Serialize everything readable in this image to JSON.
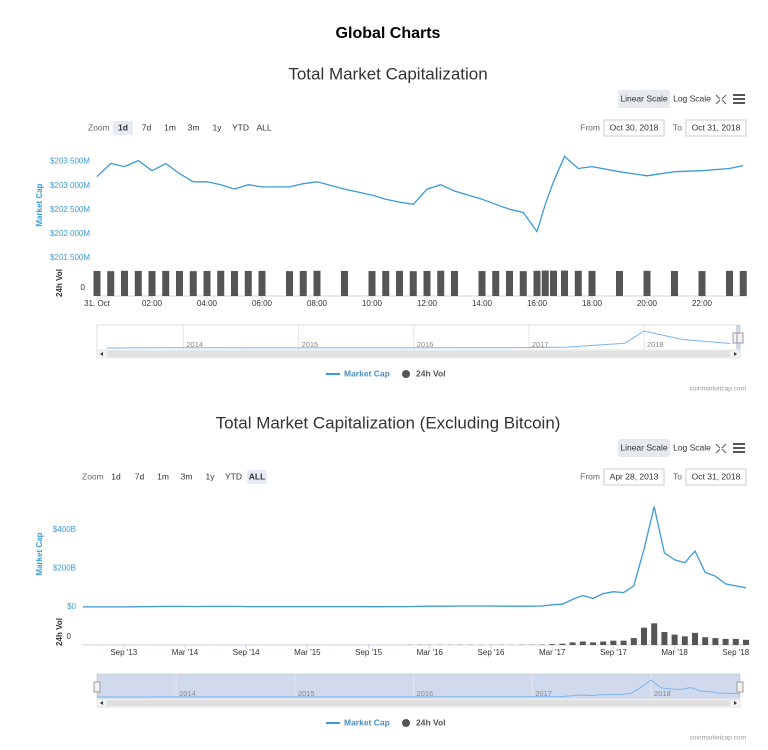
{
  "title": "Global Charts",
  "chart_data": [
    {
      "type": "line",
      "title": "Total Market Capitalization",
      "scale_buttons": [
        "Linear Scale",
        "Log Scale"
      ],
      "selected_scale": "Linear Scale",
      "zoom_label": "Zoom",
      "zoom_buttons": [
        "1d",
        "7d",
        "1m",
        "3m",
        "1y",
        "YTD",
        "ALL"
      ],
      "selected_zoom": "1d",
      "from_label": "From",
      "from_date": "Oct 30, 2018",
      "to_label": "To",
      "to_date": "Oct 31, 2018",
      "y_label": "Market Cap",
      "y2_label": "24h Vol",
      "x": [
        0,
        0.5,
        1,
        1.5,
        2,
        2.5,
        3,
        3.5,
        4,
        4.5,
        5,
        5.5,
        6,
        7,
        7.5,
        8,
        9,
        10,
        10.5,
        11,
        11.5,
        12,
        12.5,
        13,
        14,
        14.5,
        15,
        15.5,
        16,
        16.3,
        16.6,
        17,
        17.5,
        18,
        19,
        20,
        21,
        22,
        23,
        23.5
      ],
      "xlim": [
        0,
        23.6
      ],
      "xticks": [
        {
          "value": 0,
          "label": "31. Oct"
        },
        {
          "value": 2,
          "label": "02:00"
        },
        {
          "value": 4,
          "label": "04:00"
        },
        {
          "value": 6,
          "label": "06:00"
        },
        {
          "value": 8,
          "label": "08:00"
        },
        {
          "value": 10,
          "label": "10:00"
        },
        {
          "value": 12,
          "label": "12:00"
        },
        {
          "value": 14,
          "label": "14:00"
        },
        {
          "value": 16,
          "label": "16:00"
        },
        {
          "value": 18,
          "label": "18:00"
        },
        {
          "value": 20,
          "label": "20:00"
        },
        {
          "value": 22,
          "label": "22:00"
        }
      ],
      "ylim": [
        201420,
        203780
      ],
      "yticks": [
        {
          "value": 201500,
          "label": "$201 500M"
        },
        {
          "value": 202000,
          "label": "$202 000M"
        },
        {
          "value": 202500,
          "label": "$202 500M"
        },
        {
          "value": 203000,
          "label": "$203 000M"
        },
        {
          "value": 203500,
          "label": "$203 500M"
        }
      ],
      "y2lim": [
        0,
        13500
      ],
      "y2ticks": [
        0
      ],
      "series": [
        {
          "name": "Market Cap",
          "color": "#3c9ad6",
          "values": [
            203185,
            203460,
            203395,
            203520,
            203310,
            203460,
            203250,
            203080,
            203080,
            203020,
            202930,
            203020,
            202975,
            202975,
            203040,
            203080,
            202930,
            202805,
            202720,
            202660,
            202615,
            202930,
            203020,
            202890,
            202720,
            202615,
            202510,
            202445,
            202050,
            202615,
            203080,
            203605,
            203355,
            203395,
            203290,
            203205,
            203290,
            203310,
            203355,
            203415
          ]
        },
        {
          "name": "24h Vol",
          "color": "#555555",
          "type": "column",
          "axis": "y2",
          "values": [
            13000,
            12900,
            13100,
            13000,
            12950,
            13050,
            13000,
            12900,
            13000,
            13100,
            12950,
            13000,
            13050,
            12900,
            13000,
            13100,
            13000,
            12950,
            13000,
            13050,
            12900,
            13000,
            13100,
            13000,
            12950,
            13000,
            13050,
            12900,
            13100,
            13200,
            13150,
            13200,
            13100,
            13050,
            13000,
            13100,
            13000,
            12950,
            13050,
            13000
          ]
        }
      ],
      "navigator": {
        "x": [
          "2013-05",
          "2013-11",
          "2014-05",
          "2014-11",
          "2015-05",
          "2015-11",
          "2016-05",
          "2016-11",
          "2017-05",
          "2017-11",
          "2018-01",
          "2018-05",
          "2018-10"
        ],
        "values": [
          1.5,
          12,
          8,
          6,
          3.5,
          4,
          8,
          11,
          40,
          220,
          800,
          400,
          210
        ],
        "xlim": [
          "2013-04",
          "2018-11"
        ],
        "xticks": [
          2014,
          2015,
          2016,
          2017,
          2018
        ]
      },
      "credit": "coinmarketcap.com"
    },
    {
      "type": "line",
      "title": "Total Market Capitalization (Excluding Bitcoin)",
      "scale_buttons": [
        "Linear Scale",
        "Log Scale"
      ],
      "selected_scale": "Linear Scale",
      "zoom_label": "Zoom",
      "zoom_buttons": [
        "1d",
        "7d",
        "1m",
        "3m",
        "1y",
        "YTD",
        "ALL"
      ],
      "selected_zoom": "ALL",
      "from_label": "From",
      "from_date": "Apr 28, 2013",
      "to_label": "To",
      "to_date": "Oct 31, 2018",
      "y_label": "Market Cap",
      "y2_label": "24h Vol",
      "x": [
        "2013-05",
        "2013-06",
        "2013-07",
        "2013-08",
        "2013-09",
        "2013-10",
        "2013-11",
        "2013-12",
        "2014-01",
        "2014-02",
        "2014-03",
        "2014-04",
        "2014-05",
        "2014-06",
        "2014-07",
        "2014-08",
        "2014-09",
        "2014-10",
        "2014-11",
        "2014-12",
        "2015-01",
        "2015-02",
        "2015-03",
        "2015-04",
        "2015-05",
        "2015-06",
        "2015-07",
        "2015-08",
        "2015-09",
        "2015-10",
        "2015-11",
        "2015-12",
        "2016-01",
        "2016-02",
        "2016-03",
        "2016-04",
        "2016-05",
        "2016-06",
        "2016-07",
        "2016-08",
        "2016-09",
        "2016-10",
        "2016-11",
        "2016-12",
        "2017-01",
        "2017-02",
        "2017-03",
        "2017-04",
        "2017-05",
        "2017-06",
        "2017-07",
        "2017-08",
        "2017-09",
        "2017-10",
        "2017-11",
        "2017-12",
        "2018-01",
        "2018-02",
        "2018-03",
        "2018-04",
        "2018-05",
        "2018-06",
        "2018-07",
        "2018-08",
        "2018-09",
        "2018-10"
      ],
      "xlim": [
        "2013-05",
        "2018-10"
      ],
      "xticks": [
        {
          "value": "2013-09",
          "label": "Sep '13"
        },
        {
          "value": "2014-03",
          "label": "Mar '14"
        },
        {
          "value": "2014-09",
          "label": "Sep '14"
        },
        {
          "value": "2015-03",
          "label": "Mar '15"
        },
        {
          "value": "2015-09",
          "label": "Sep '15"
        },
        {
          "value": "2016-03",
          "label": "Mar '16"
        },
        {
          "value": "2016-09",
          "label": "Sep '16"
        },
        {
          "value": "2017-03",
          "label": "Mar '17"
        },
        {
          "value": "2017-09",
          "label": "Sep '17"
        },
        {
          "value": "2018-03",
          "label": "Mar '18"
        },
        {
          "value": "2018-09",
          "label": "Sep '18"
        }
      ],
      "ylim": [
        -20,
        570
      ],
      "yticks": [
        {
          "value": 0,
          "label": "$0"
        },
        {
          "value": 200,
          "label": "$200B"
        },
        {
          "value": 400,
          "label": "$400B"
        }
      ],
      "y2lim": [
        0,
        30
      ],
      "y2ticks": [
        0
      ],
      "series": [
        {
          "name": "Market Cap",
          "color": "#3c9ad6",
          "values": [
            1,
            1,
            1,
            1,
            1,
            1.5,
            3,
            3,
            4,
            4,
            4,
            3,
            4,
            4,
            4,
            4,
            3,
            3,
            3,
            3,
            3,
            3,
            3,
            3,
            3,
            3,
            3,
            3,
            2,
            2,
            3,
            3,
            3,
            4,
            5,
            5,
            5,
            6,
            6,
            6,
            6,
            5,
            5,
            5,
            5,
            6,
            12,
            15,
            40,
            60,
            45,
            70,
            80,
            75,
            110,
            300,
            520,
            280,
            245,
            230,
            290,
            180,
            160,
            120,
            110,
            100
          ]
        },
        {
          "name": "24h Vol",
          "color": "#555555",
          "type": "column",
          "axis": "y2",
          "values": [
            0.1,
            0.1,
            0.1,
            0.1,
            0.1,
            0.1,
            0.1,
            0.1,
            0.1,
            0.1,
            0.1,
            0.1,
            0.1,
            0.1,
            0.1,
            0.1,
            0.1,
            0.1,
            0.1,
            0.1,
            0.1,
            0.1,
            0.1,
            0.1,
            0.1,
            0.1,
            0.1,
            0.1,
            0.1,
            0.1,
            0.1,
            0.1,
            0.2,
            0.2,
            0.2,
            0.2,
            0.2,
            0.2,
            0.2,
            0.2,
            0.2,
            0.2,
            0.2,
            0.2,
            0.3,
            0.4,
            1,
            1.5,
            3,
            4,
            3,
            4,
            5,
            5,
            8,
            20,
            25,
            15,
            12,
            10,
            14,
            9,
            8,
            7,
            7,
            6
          ]
        }
      ],
      "navigator": {
        "xticks": [
          2014,
          2015,
          2016,
          2017,
          2018
        ]
      },
      "credit": "coinmarketcap.com"
    }
  ]
}
